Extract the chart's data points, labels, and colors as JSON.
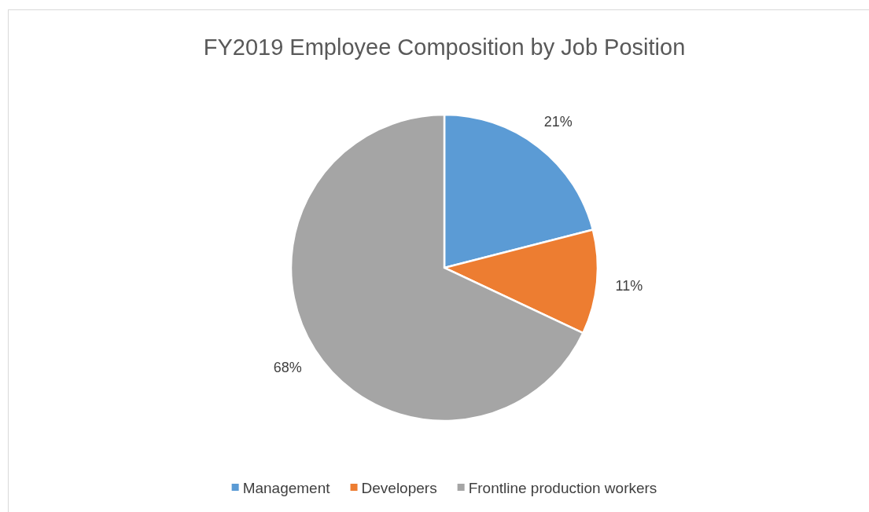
{
  "chart_data": {
    "type": "pie",
    "title": "FY2019 Employee Composition by Job Position",
    "categories": [
      "Management",
      "Developers",
      "Frontline production workers"
    ],
    "values": [
      21,
      11,
      68
    ],
    "colors": [
      "#5b9bd5",
      "#ed7d31",
      "#a5a5a5"
    ],
    "value_labels": [
      "21%",
      "11%",
      "68%"
    ],
    "legend": "bottom"
  }
}
